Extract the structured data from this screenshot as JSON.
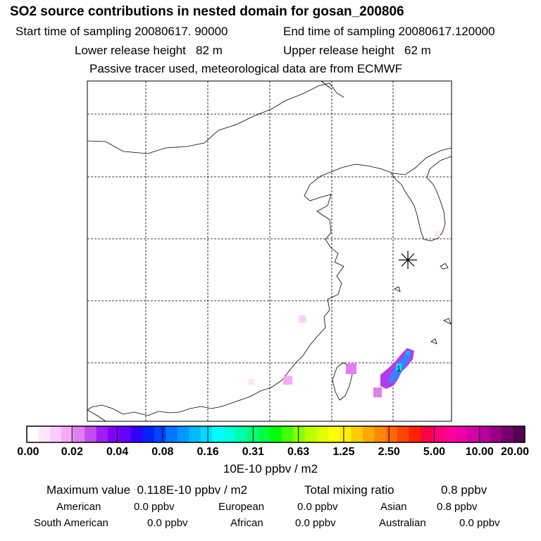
{
  "header": {
    "title": "SO2 source contributions in nested domain for gosan_200806",
    "start_label": "Start time of sampling",
    "start_value": "20080617. 90000",
    "end_label": "End time of sampling",
    "end_value": "20080617.120000",
    "lower_label": "Lower release height",
    "lower_value": "82 m",
    "upper_label": "Upper release height",
    "upper_value": "62 m",
    "note": "Passive tracer used, meteorological data are from ECMWF"
  },
  "map": {
    "site_marker": "asterisk-icon",
    "cell_label": "1"
  },
  "colorbar": {
    "ticks": [
      "0.00",
      "0.02",
      "0.04",
      "0.08",
      "0.16",
      "0.31",
      "0.63",
      "1.25",
      "2.50",
      "5.00",
      "10.00",
      "20.00"
    ],
    "colors": [
      "#ffffff",
      "#ffe6ff",
      "#ffccff",
      "#f7a8f7",
      "#e07ef2",
      "#c44cf0",
      "#a21cf2",
      "#7f00ff",
      "#6600ff",
      "#3300ff",
      "#0022ff",
      "#0044ff",
      "#0077ff",
      "#0099ff",
      "#00bbff",
      "#00ddff",
      "#00ffff",
      "#00ffdd",
      "#00ffaa",
      "#00ff77",
      "#00ff44",
      "#00ff00",
      "#44ff00",
      "#88ff00",
      "#bbff00",
      "#ddff00",
      "#ffff00",
      "#ffee00",
      "#ffcc00",
      "#ffaa00",
      "#ff8800",
      "#ff6600",
      "#ff4400",
      "#ff2200",
      "#ff0044",
      "#ff0077",
      "#ff0099",
      "#ee00aa",
      "#d600a8",
      "#bb00a0",
      "#990088",
      "#770070",
      "#550055"
    ],
    "unit": "10E-10 ppbv / m2"
  },
  "stats": {
    "max_label": "Maximum value",
    "max_value": "0.118E-10 ppbv / m2",
    "total_label": "Total mixing ratio",
    "total_value": "0.8 ppbv",
    "regions": [
      {
        "name": "American",
        "value": "0.0 ppbv"
      },
      {
        "name": "European",
        "value": "0.0 ppbv"
      },
      {
        "name": "Asian",
        "value": "0.8 ppbv"
      },
      {
        "name": "South American",
        "value": "0.0 ppbv"
      },
      {
        "name": "African",
        "value": "0.0 ppbv"
      },
      {
        "name": "Australian",
        "value": "0.0 ppbv"
      }
    ]
  }
}
